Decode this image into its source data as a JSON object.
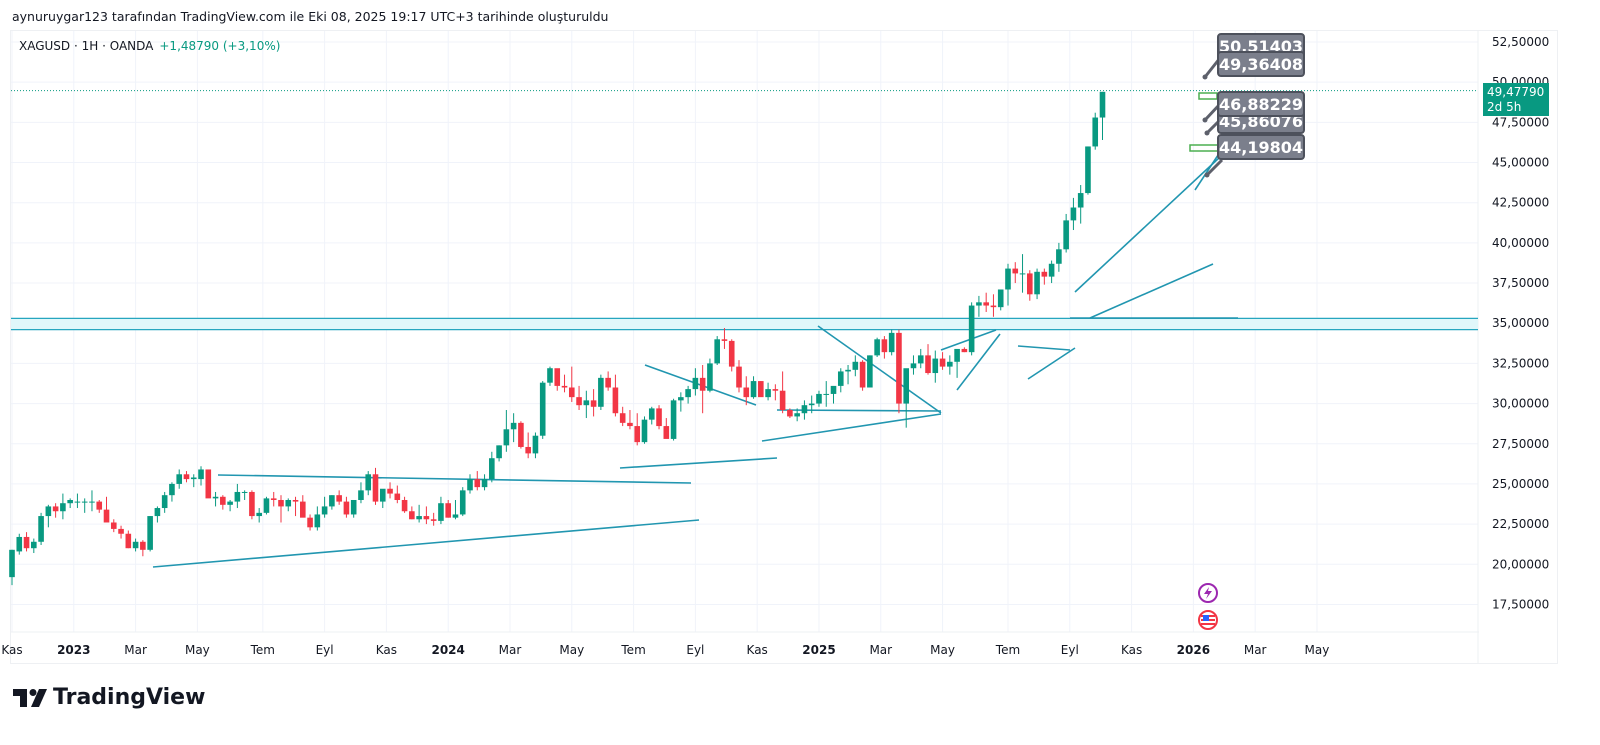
{
  "header": {
    "credit": "aynuruygar123 tarafından TradingView.com ile Eki 08, 2025 19:17 UTC+3 tarihinde oluşturuldu"
  },
  "legend": {
    "symbol": "XAGUSD · 1H · OANDA",
    "change": "+1,48790 (+3,10%)"
  },
  "price_tag": {
    "price": "49,47790",
    "countdown": "2d 5h",
    "color": "#089981"
  },
  "callouts": [
    "50.51403",
    "49,36408",
    "46,88229",
    "45,86076",
    "44,19804"
  ],
  "brand": {
    "name": "TradingView"
  },
  "colors": {
    "up": "#089981",
    "down": "#f23645",
    "drawing": "#2196b0",
    "zone": "#b2ebf2"
  },
  "events": [
    {
      "name": "lightning-event-icon"
    },
    {
      "name": "us-flag-event-icon"
    }
  ],
  "chart_data": {
    "type": "candlestick",
    "title": "XAGUSD · 1H · OANDA",
    "ylabel": "",
    "xlabel": "",
    "ylim": [
      15.5,
      54
    ],
    "grid": true,
    "yticks": [
      "52,50000",
      "50,00000",
      "47,50000",
      "45,00000",
      "42,50000",
      "40,00000",
      "37,50000",
      "35,00000",
      "32,50000",
      "30,00000",
      "27,50000",
      "25,00000",
      "22,50000",
      "20,00000",
      "17,50000"
    ],
    "ytick_values": [
      52.5,
      50,
      47.5,
      45,
      42.5,
      40,
      37.5,
      35,
      32.5,
      30,
      27.5,
      25,
      22.5,
      20,
      17.5
    ],
    "xticks": [
      {
        "label": "Kas",
        "idx": 0,
        "year": false
      },
      {
        "label": "2023",
        "idx": 8.5,
        "year": true
      },
      {
        "label": "Mar",
        "idx": 17,
        "year": false
      },
      {
        "label": "May",
        "idx": 25.5,
        "year": false
      },
      {
        "label": "Tem",
        "idx": 34.5,
        "year": false
      },
      {
        "label": "Eyl",
        "idx": 43,
        "year": false
      },
      {
        "label": "Kas",
        "idx": 51.5,
        "year": false
      },
      {
        "label": "2024",
        "idx": 60,
        "year": true
      },
      {
        "label": "Mar",
        "idx": 68.5,
        "year": false
      },
      {
        "label": "May",
        "idx": 77,
        "year": false
      },
      {
        "label": "Tem",
        "idx": 85.5,
        "year": false
      },
      {
        "label": "Eyl",
        "idx": 94,
        "year": false
      },
      {
        "label": "Kas",
        "idx": 102.5,
        "year": false
      },
      {
        "label": "2025",
        "idx": 111,
        "year": true
      },
      {
        "label": "Mar",
        "idx": 119.5,
        "year": false
      },
      {
        "label": "May",
        "idx": 128,
        "year": false
      },
      {
        "label": "Tem",
        "idx": 137,
        "year": false
      },
      {
        "label": "Eyl",
        "idx": 145.5,
        "year": false
      },
      {
        "label": "Kas",
        "idx": 154,
        "year": false
      },
      {
        "label": "2026",
        "idx": 162.5,
        "year": true
      },
      {
        "label": "Mar",
        "idx": 171,
        "year": false
      },
      {
        "label": "May",
        "idx": 179.5,
        "year": false
      }
    ],
    "last_price": 49.4779,
    "zone": [
      34.6,
      35.3
    ],
    "candles": [
      [
        19.2,
        20.9,
        18.7,
        20.9
      ],
      [
        20.8,
        21.9,
        20.6,
        21.7
      ],
      [
        21.7,
        22.0,
        20.8,
        21.0
      ],
      [
        21.0,
        21.6,
        20.7,
        21.4
      ],
      [
        21.4,
        23.2,
        21.2,
        23.0
      ],
      [
        23.0,
        23.7,
        22.3,
        23.6
      ],
      [
        23.6,
        23.8,
        22.9,
        23.3
      ],
      [
        23.3,
        24.4,
        22.8,
        23.8
      ],
      [
        23.8,
        24.1,
        23.5,
        24.0
      ],
      [
        23.9,
        24.4,
        23.5,
        23.9
      ],
      [
        23.9,
        24.1,
        23.2,
        23.9
      ],
      [
        23.9,
        24.6,
        23.3,
        23.9
      ],
      [
        23.9,
        24.0,
        23.2,
        23.4
      ],
      [
        23.4,
        24.2,
        22.8,
        22.6
      ],
      [
        22.6,
        22.8,
        22.0,
        22.2
      ],
      [
        22.2,
        22.4,
        21.6,
        21.9
      ],
      [
        21.9,
        22.1,
        21.0,
        21.0
      ],
      [
        21.0,
        21.6,
        20.8,
        21.4
      ],
      [
        21.4,
        21.5,
        20.5,
        20.9
      ],
      [
        20.9,
        23.0,
        20.8,
        23.0
      ],
      [
        23.0,
        23.6,
        22.6,
        23.5
      ],
      [
        23.5,
        24.5,
        23.2,
        24.3
      ],
      [
        24.3,
        25.1,
        23.9,
        25.0
      ],
      [
        25.0,
        25.9,
        24.7,
        25.6
      ],
      [
        25.6,
        25.8,
        25.1,
        25.3
      ],
      [
        25.3,
        25.6,
        24.8,
        25.4
      ],
      [
        25.3,
        26.1,
        24.9,
        25.9
      ],
      [
        25.9,
        25.8,
        24.8,
        24.1
      ],
      [
        24.1,
        24.5,
        23.6,
        24.2
      ],
      [
        24.2,
        24.3,
        23.4,
        23.7
      ],
      [
        23.7,
        24.0,
        23.3,
        23.9
      ],
      [
        23.9,
        25.0,
        23.5,
        24.5
      ],
      [
        24.5,
        24.6,
        24.0,
        24.5
      ],
      [
        24.5,
        24.6,
        22.8,
        23.0
      ],
      [
        23.0,
        23.5,
        22.6,
        23.2
      ],
      [
        23.2,
        24.2,
        23.1,
        24.1
      ],
      [
        24.1,
        24.5,
        23.6,
        24.0
      ],
      [
        24.0,
        24.3,
        22.6,
        23.6
      ],
      [
        23.6,
        24.1,
        23.3,
        24.0
      ],
      [
        24.0,
        24.2,
        23.0,
        23.9
      ],
      [
        23.9,
        24.3,
        23.3,
        22.9
      ],
      [
        22.9,
        23.1,
        22.1,
        22.3
      ],
      [
        22.3,
        23.6,
        22.1,
        23.1
      ],
      [
        23.1,
        24.2,
        22.9,
        23.6
      ],
      [
        23.6,
        24.3,
        23.4,
        24.3
      ],
      [
        24.3,
        24.6,
        23.7,
        23.9
      ],
      [
        23.9,
        24.2,
        22.9,
        23.1
      ],
      [
        23.1,
        24.0,
        22.9,
        24.0
      ],
      [
        24.0,
        25.1,
        23.8,
        24.6
      ],
      [
        24.6,
        25.8,
        24.3,
        25.6
      ],
      [
        25.6,
        26.0,
        23.7,
        23.9
      ],
      [
        23.9,
        24.5,
        23.5,
        24.7
      ],
      [
        24.7,
        25.1,
        24.1,
        24.4
      ],
      [
        24.4,
        24.9,
        23.8,
        24.0
      ],
      [
        24.0,
        24.2,
        23.2,
        23.3
      ],
      [
        23.3,
        23.6,
        22.8,
        22.8
      ],
      [
        22.8,
        23.7,
        22.6,
        23.0
      ],
      [
        23.0,
        23.6,
        22.5,
        22.8
      ],
      [
        22.8,
        23.2,
        22.4,
        22.7
      ],
      [
        22.7,
        24.2,
        22.5,
        23.8
      ],
      [
        23.8,
        24.0,
        22.9,
        22.9
      ],
      [
        22.9,
        24.0,
        22.8,
        23.1
      ],
      [
        23.1,
        24.8,
        23.0,
        24.6
      ],
      [
        24.6,
        25.6,
        24.4,
        25.3
      ],
      [
        25.3,
        25.8,
        24.6,
        24.8
      ],
      [
        24.8,
        25.6,
        24.6,
        25.3
      ],
      [
        25.3,
        27.0,
        25.1,
        26.6
      ],
      [
        26.6,
        27.4,
        26.4,
        27.4
      ],
      [
        27.4,
        29.6,
        27.0,
        28.4
      ],
      [
        28.4,
        29.4,
        27.6,
        28.8
      ],
      [
        28.8,
        28.9,
        27.2,
        27.3
      ],
      [
        27.3,
        28.2,
        26.6,
        26.9
      ],
      [
        26.9,
        28.2,
        26.6,
        28.0
      ],
      [
        28.0,
        31.4,
        27.8,
        31.3
      ],
      [
        31.3,
        32.3,
        31.1,
        32.2
      ],
      [
        32.2,
        32.0,
        30.8,
        31.1
      ],
      [
        31.1,
        31.8,
        30.7,
        31.0
      ],
      [
        31.0,
        32.3,
        30.1,
        30.4
      ],
      [
        30.4,
        31.1,
        29.6,
        29.9
      ],
      [
        29.9,
        30.8,
        29.1,
        30.2
      ],
      [
        30.2,
        30.9,
        29.2,
        29.8
      ],
      [
        29.8,
        31.8,
        29.6,
        31.6
      ],
      [
        31.6,
        32.0,
        30.8,
        31.0
      ],
      [
        31.0,
        31.8,
        29.2,
        29.4
      ],
      [
        29.4,
        29.8,
        28.6,
        28.8
      ],
      [
        28.8,
        29.6,
        28.4,
        28.6
      ],
      [
        28.6,
        29.4,
        27.4,
        27.6
      ],
      [
        27.6,
        29.2,
        27.5,
        29.0
      ],
      [
        29.0,
        29.8,
        28.7,
        29.7
      ],
      [
        29.7,
        29.9,
        28.4,
        28.6
      ],
      [
        28.6,
        29.1,
        28.0,
        27.8
      ],
      [
        27.8,
        30.3,
        27.7,
        30.2
      ],
      [
        30.2,
        30.7,
        29.5,
        30.4
      ],
      [
        30.4,
        31.1,
        30.0,
        30.9
      ],
      [
        30.9,
        32.2,
        30.5,
        31.6
      ],
      [
        31.6,
        32.4,
        29.4,
        30.8
      ],
      [
        30.8,
        32.8,
        30.7,
        32.5
      ],
      [
        32.5,
        34.2,
        32.4,
        34.0
      ],
      [
        34.0,
        34.7,
        33.4,
        33.9
      ],
      [
        33.9,
        34.0,
        32.0,
        32.3
      ],
      [
        32.3,
        32.7,
        30.7,
        31.0
      ],
      [
        31.0,
        31.7,
        29.9,
        30.4
      ],
      [
        30.4,
        31.7,
        30.3,
        31.4
      ],
      [
        31.4,
        31.4,
        30.7,
        30.4
      ],
      [
        30.4,
        31.3,
        30.2,
        30.9
      ],
      [
        30.9,
        31.2,
        30.2,
        30.8
      ],
      [
        30.8,
        32.0,
        29.4,
        29.6
      ],
      [
        29.6,
        29.7,
        29.1,
        29.2
      ],
      [
        29.2,
        29.7,
        28.9,
        29.4
      ],
      [
        29.4,
        30.2,
        29.0,
        29.9
      ],
      [
        29.9,
        30.5,
        29.4,
        30.0
      ],
      [
        30.0,
        30.8,
        29.8,
        30.6
      ],
      [
        30.6,
        31.4,
        29.8,
        30.6
      ],
      [
        30.6,
        31.0,
        30.0,
        31.1
      ],
      [
        31.1,
        32.2,
        30.7,
        32.0
      ],
      [
        32.0,
        32.4,
        31.2,
        32.1
      ],
      [
        32.1,
        33.0,
        31.7,
        32.6
      ],
      [
        32.6,
        32.7,
        30.8,
        31.0
      ],
      [
        31.0,
        33.0,
        31.2,
        33.0
      ],
      [
        33.0,
        34.1,
        32.9,
        34.0
      ],
      [
        34.0,
        34.2,
        32.8,
        33.2
      ],
      [
        33.2,
        34.6,
        33.0,
        34.4
      ],
      [
        34.4,
        34.6,
        29.4,
        30.0
      ],
      [
        30.0,
        30.4,
        28.5,
        32.2
      ],
      [
        32.2,
        33.0,
        31.8,
        32.5
      ],
      [
        32.5,
        33.4,
        32.2,
        33.0
      ],
      [
        33.0,
        33.7,
        31.8,
        31.9
      ],
      [
        31.9,
        33.3,
        31.3,
        32.8
      ],
      [
        32.8,
        33.2,
        32.1,
        32.3
      ],
      [
        32.3,
        33.0,
        31.8,
        32.6
      ],
      [
        32.6,
        33.1,
        31.6,
        33.4
      ],
      [
        33.4,
        33.5,
        33.2,
        33.2
      ],
      [
        33.2,
        36.3,
        33.0,
        36.1
      ],
      [
        36.1,
        36.7,
        35.4,
        36.3
      ],
      [
        36.3,
        36.9,
        35.7,
        36.1
      ],
      [
        36.1,
        36.8,
        35.4,
        36.0
      ],
      [
        36.0,
        37.0,
        35.8,
        37.1
      ],
      [
        37.1,
        38.7,
        36.1,
        38.4
      ],
      [
        38.4,
        38.8,
        37.5,
        38.1
      ],
      [
        38.1,
        39.3,
        36.9,
        38.1
      ],
      [
        38.1,
        38.3,
        36.4,
        36.8
      ],
      [
        36.8,
        38.4,
        36.5,
        38.2
      ],
      [
        38.2,
        38.4,
        37.4,
        37.9
      ],
      [
        37.9,
        38.9,
        37.5,
        38.7
      ],
      [
        38.7,
        40.0,
        38.2,
        39.6
      ],
      [
        39.6,
        41.8,
        39.4,
        41.4
      ],
      [
        41.4,
        42.8,
        40.8,
        42.2
      ],
      [
        42.2,
        43.6,
        41.2,
        43.1
      ],
      [
        43.1,
        46.0,
        43.0,
        46.0
      ],
      [
        46.0,
        48.1,
        45.8,
        47.8
      ],
      [
        47.8,
        49.4,
        46.4,
        49.4
      ]
    ]
  }
}
